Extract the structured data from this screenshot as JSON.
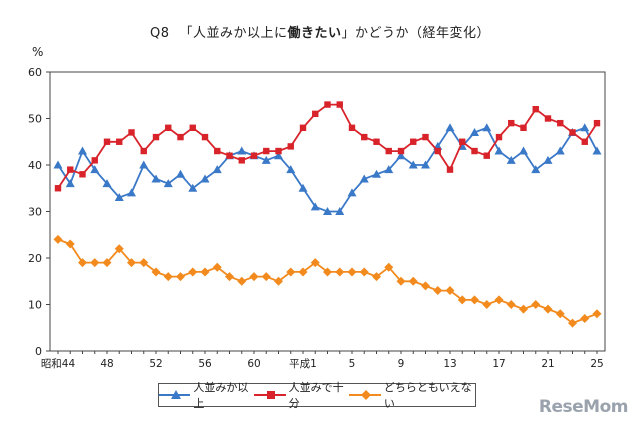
{
  "title": {
    "q": "Q8",
    "pre": "「人並みか以上に",
    "bold": "働きたい",
    "post": "」かどうか（経年変化）"
  },
  "watermark": "ReseMom",
  "chart_data": {
    "type": "line",
    "unit_label": "%",
    "ylim": [
      0,
      60
    ],
    "yticks": [
      "0",
      "10",
      "20",
      "30",
      "40",
      "50",
      "60"
    ],
    "x_tick_labels": [
      {
        "i": 0,
        "label": "昭和44"
      },
      {
        "i": 4,
        "label": "48"
      },
      {
        "i": 8,
        "label": "52"
      },
      {
        "i": 12,
        "label": "56"
      },
      {
        "i": 16,
        "label": "60"
      },
      {
        "i": 20,
        "label": "平成1"
      },
      {
        "i": 24,
        "label": "5"
      },
      {
        "i": 28,
        "label": "9"
      },
      {
        "i": 32,
        "label": "13"
      },
      {
        "i": 36,
        "label": "17"
      },
      {
        "i": 40,
        "label": "21"
      },
      {
        "i": 44,
        "label": "25"
      }
    ],
    "legend_position": "bottom",
    "series": [
      {
        "name": "人並みか以上",
        "color": "#3a78c8",
        "marker": "triangle",
        "values": [
          40,
          36,
          43,
          39,
          36,
          33,
          34,
          40,
          37,
          36,
          38,
          35,
          37,
          39,
          42,
          43,
          42,
          41,
          42,
          39,
          35,
          31,
          30,
          30,
          34,
          37,
          38,
          39,
          42,
          40,
          40,
          44,
          48,
          44,
          47,
          48,
          43,
          41,
          43,
          39,
          41,
          43,
          47,
          48,
          43
        ]
      },
      {
        "name": "人並みで十分",
        "color": "#d8232a",
        "marker": "square",
        "values": [
          35,
          39,
          38,
          41,
          45,
          45,
          47,
          43,
          46,
          48,
          46,
          48,
          46,
          43,
          42,
          41,
          42,
          43,
          43,
          44,
          48,
          51,
          53,
          53,
          48,
          46,
          45,
          43,
          43,
          45,
          46,
          43,
          39,
          45,
          43,
          42,
          46,
          49,
          48,
          52,
          50,
          49,
          47,
          45,
          49
        ]
      },
      {
        "name": "どちらともいえない",
        "color": "#f28a1e",
        "marker": "diamond",
        "values": [
          24,
          23,
          19,
          19,
          19,
          22,
          19,
          19,
          17,
          16,
          16,
          17,
          17,
          18,
          16,
          15,
          16,
          16,
          15,
          17,
          17,
          19,
          17,
          17,
          17,
          17,
          16,
          18,
          15,
          15,
          14,
          13,
          13,
          11,
          11,
          10,
          11,
          10,
          9,
          10,
          9,
          8,
          6,
          7,
          8
        ]
      }
    ]
  }
}
